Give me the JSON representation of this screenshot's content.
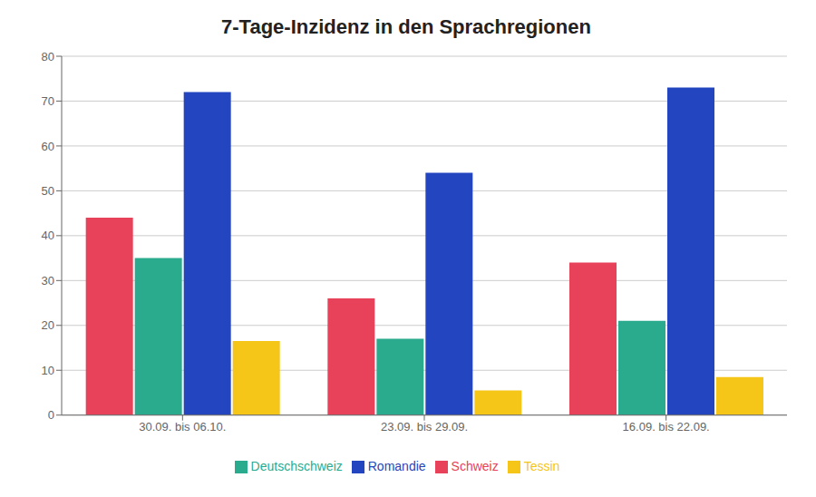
{
  "chart_data": {
    "type": "bar",
    "title": "7-Tage-Inzidenz in den Sprachregionen",
    "categories": [
      "30.09. bis 06.10.",
      "23.09. bis 29.09.",
      "16.09. bis 22.09."
    ],
    "series": [
      {
        "name": "Schweiz",
        "color": "#e8415a",
        "values": [
          44,
          26,
          34
        ]
      },
      {
        "name": "Deutschschweiz",
        "color": "#2aab8e",
        "values": [
          35,
          17,
          21
        ]
      },
      {
        "name": "Romandie",
        "color": "#2346c0",
        "values": [
          72,
          54,
          73
        ]
      },
      {
        "name": "Tessin",
        "color": "#f5c518",
        "values": [
          16.5,
          5.5,
          8.5
        ]
      }
    ],
    "ylim": [
      0,
      80
    ],
    "yticks": [
      0,
      10,
      20,
      30,
      40,
      50,
      60,
      70,
      80
    ],
    "grid": true,
    "legend": "bottom"
  }
}
